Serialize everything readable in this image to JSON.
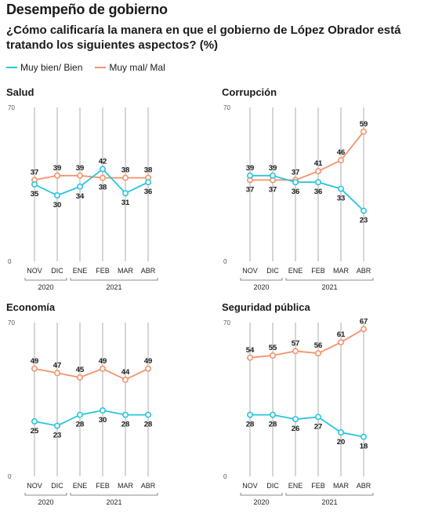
{
  "header": {
    "title": "Desempeño de gobierno",
    "subtitle": "¿Cómo calificaría la manera en que el gobierno de López Obrador está tratando los siguientes aspectos? (%)"
  },
  "legend": {
    "good_label": "Muy bien/ Bien",
    "bad_label": "Muy mal/ Mal"
  },
  "colors": {
    "good": "#29c4dd",
    "bad": "#f4926a",
    "grid": "#9a9a9a",
    "text": "#1a1a1a"
  },
  "chart_data": [
    {
      "type": "line",
      "title": "Salud",
      "categories": [
        "NOV",
        "DIC",
        "ENE",
        "FEB",
        "MAR",
        "ABR"
      ],
      "year_groups": [
        {
          "label": "2020",
          "from": 0,
          "to": 1
        },
        {
          "label": "2021",
          "from": 2,
          "to": 5
        }
      ],
      "ylim": [
        0,
        70
      ],
      "ytick_labels": [
        "70",
        "0"
      ],
      "series": [
        {
          "name": "Muy bien/ Bien",
          "values": [
            35,
            30,
            34,
            42,
            31,
            36
          ]
        },
        {
          "name": "Muy mal/ Mal",
          "values": [
            37,
            39,
            39,
            38,
            38,
            38
          ]
        }
      ]
    },
    {
      "type": "line",
      "title": "Corrupción",
      "categories": [
        "NOV",
        "DIC",
        "ENE",
        "FEB",
        "MAR",
        "ABR"
      ],
      "year_groups": [
        {
          "label": "2020",
          "from": 0,
          "to": 1
        },
        {
          "label": "2021",
          "from": 2,
          "to": 5
        }
      ],
      "ylim": [
        0,
        70
      ],
      "ytick_labels": [
        "70",
        "0"
      ],
      "series": [
        {
          "name": "Muy bien/ Bien",
          "values": [
            39,
            39,
            36,
            36,
            33,
            23
          ]
        },
        {
          "name": "Muy mal/ Mal",
          "values": [
            37,
            37,
            37,
            41,
            46,
            59
          ]
        }
      ]
    },
    {
      "type": "line",
      "title": "Economía",
      "categories": [
        "NOV",
        "DIC",
        "ENE",
        "FEB",
        "MAR",
        "ABR"
      ],
      "year_groups": [
        {
          "label": "2020",
          "from": 0,
          "to": 1
        },
        {
          "label": "2021",
          "from": 2,
          "to": 5
        }
      ],
      "ylim": [
        0,
        70
      ],
      "ytick_labels": [
        "70",
        "0"
      ],
      "series": [
        {
          "name": "Muy bien/ Bien",
          "values": [
            25,
            23,
            28,
            30,
            28,
            28
          ]
        },
        {
          "name": "Muy mal/ Mal",
          "values": [
            49,
            47,
            45,
            49,
            44,
            49
          ]
        }
      ]
    },
    {
      "type": "line",
      "title": "Seguridad pública",
      "categories": [
        "NOV",
        "DIC",
        "ENE",
        "FEB",
        "MAR",
        "ABR"
      ],
      "year_groups": [
        {
          "label": "2020",
          "from": 0,
          "to": 1
        },
        {
          "label": "2021",
          "from": 2,
          "to": 5
        }
      ],
      "ylim": [
        0,
        70
      ],
      "ytick_labels": [
        "70",
        "0"
      ],
      "series": [
        {
          "name": "Muy bien/ Bien",
          "values": [
            28,
            28,
            26,
            27,
            20,
            18
          ]
        },
        {
          "name": "Muy mal/ Mal",
          "values": [
            54,
            55,
            57,
            56,
            61,
            67
          ]
        }
      ]
    }
  ]
}
